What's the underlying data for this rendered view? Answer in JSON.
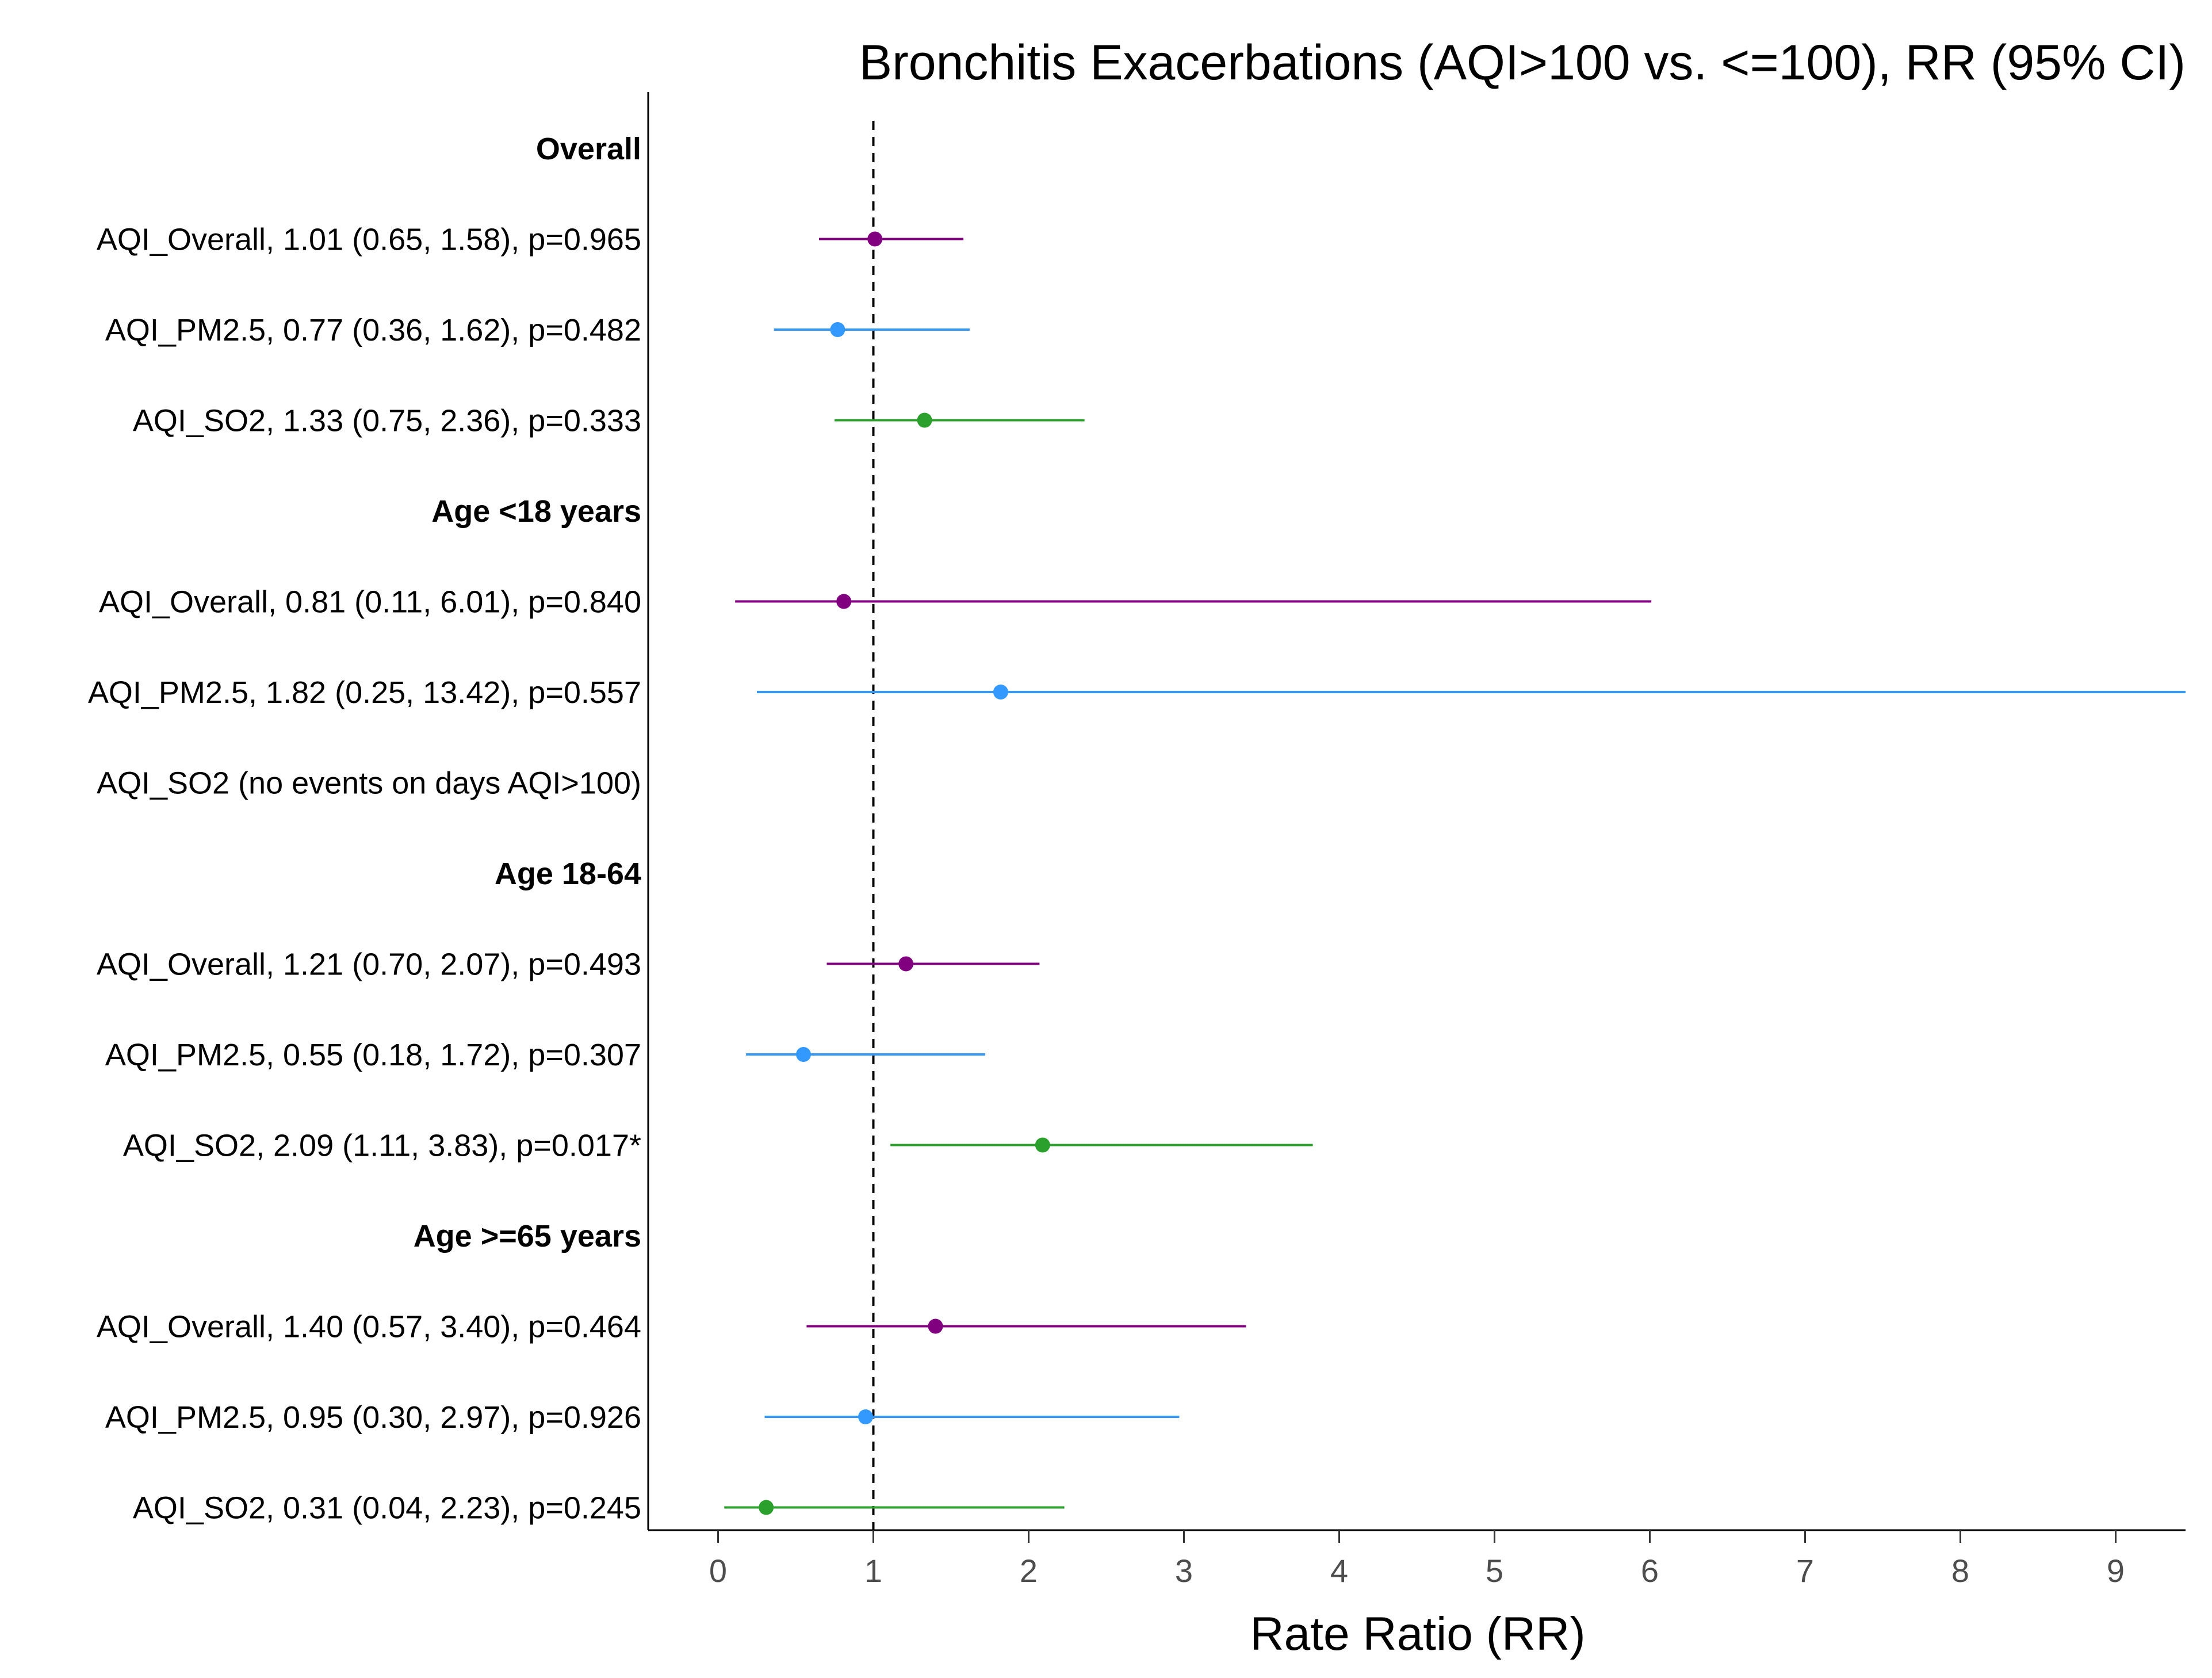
{
  "chart_data": {
    "type": "forest",
    "title": "Bronchitis Exacerbations (AQI>100 vs. <=100), RR (95% CI)",
    "xlabel": "Rate Ratio (RR)",
    "xlim": [
      -0.45,
      9.45
    ],
    "xticks": [
      0,
      1,
      2,
      3,
      4,
      5,
      6,
      7,
      8,
      9
    ],
    "reference_line": 1,
    "grid": false,
    "series_colors": {
      "AQI_Overall": "#800080",
      "AQI_PM2.5": "#3399ff",
      "AQI_SO2": "#2ca02c"
    },
    "rows": [
      {
        "kind": "group",
        "label": "Overall"
      },
      {
        "kind": "estimate",
        "series": "AQI_Overall",
        "label": "AQI_Overall, 1.01 (0.65, 1.58), p=0.965",
        "rr": 1.01,
        "lower": 0.65,
        "upper": 1.58
      },
      {
        "kind": "estimate",
        "series": "AQI_PM2.5",
        "label": "AQI_PM2.5, 0.77 (0.36, 1.62), p=0.482",
        "rr": 0.77,
        "lower": 0.36,
        "upper": 1.62
      },
      {
        "kind": "estimate",
        "series": "AQI_SO2",
        "label": "AQI_SO2, 1.33 (0.75, 2.36), p=0.333",
        "rr": 1.33,
        "lower": 0.75,
        "upper": 2.36
      },
      {
        "kind": "group",
        "label": "Age <18 years"
      },
      {
        "kind": "estimate",
        "series": "AQI_Overall",
        "label": "AQI_Overall, 0.81 (0.11, 6.01), p=0.840",
        "rr": 0.81,
        "lower": 0.11,
        "upper": 6.01
      },
      {
        "kind": "estimate",
        "series": "AQI_PM2.5",
        "label": "AQI_PM2.5, 1.82 (0.25, 13.42), p=0.557",
        "rr": 1.82,
        "lower": 0.25,
        "upper": 13.42
      },
      {
        "kind": "note",
        "series": "AQI_SO2",
        "label": "AQI_SO2 (no events on days AQI>100)"
      },
      {
        "kind": "group",
        "label": "Age 18-64"
      },
      {
        "kind": "estimate",
        "series": "AQI_Overall",
        "label": "AQI_Overall, 1.21 (0.70, 2.07), p=0.493",
        "rr": 1.21,
        "lower": 0.7,
        "upper": 2.07
      },
      {
        "kind": "estimate",
        "series": "AQI_PM2.5",
        "label": "AQI_PM2.5, 0.55 (0.18, 1.72), p=0.307",
        "rr": 0.55,
        "lower": 0.18,
        "upper": 1.72
      },
      {
        "kind": "estimate",
        "series": "AQI_SO2",
        "label": "AQI_SO2, 2.09 (1.11, 3.83), p=0.017*",
        "rr": 2.09,
        "lower": 1.11,
        "upper": 3.83
      },
      {
        "kind": "group",
        "label": "Age >=65 years"
      },
      {
        "kind": "estimate",
        "series": "AQI_Overall",
        "label": "AQI_Overall, 1.40 (0.57, 3.40), p=0.464",
        "rr": 1.4,
        "lower": 0.57,
        "upper": 3.4
      },
      {
        "kind": "estimate",
        "series": "AQI_PM2.5",
        "label": "AQI_PM2.5, 0.95 (0.30, 2.97), p=0.926",
        "rr": 0.95,
        "lower": 0.3,
        "upper": 2.97
      },
      {
        "kind": "estimate",
        "series": "AQI_SO2",
        "label": "AQI_SO2, 0.31 (0.04, 2.23), p=0.245",
        "rr": 0.31,
        "lower": 0.04,
        "upper": 2.23
      }
    ]
  }
}
